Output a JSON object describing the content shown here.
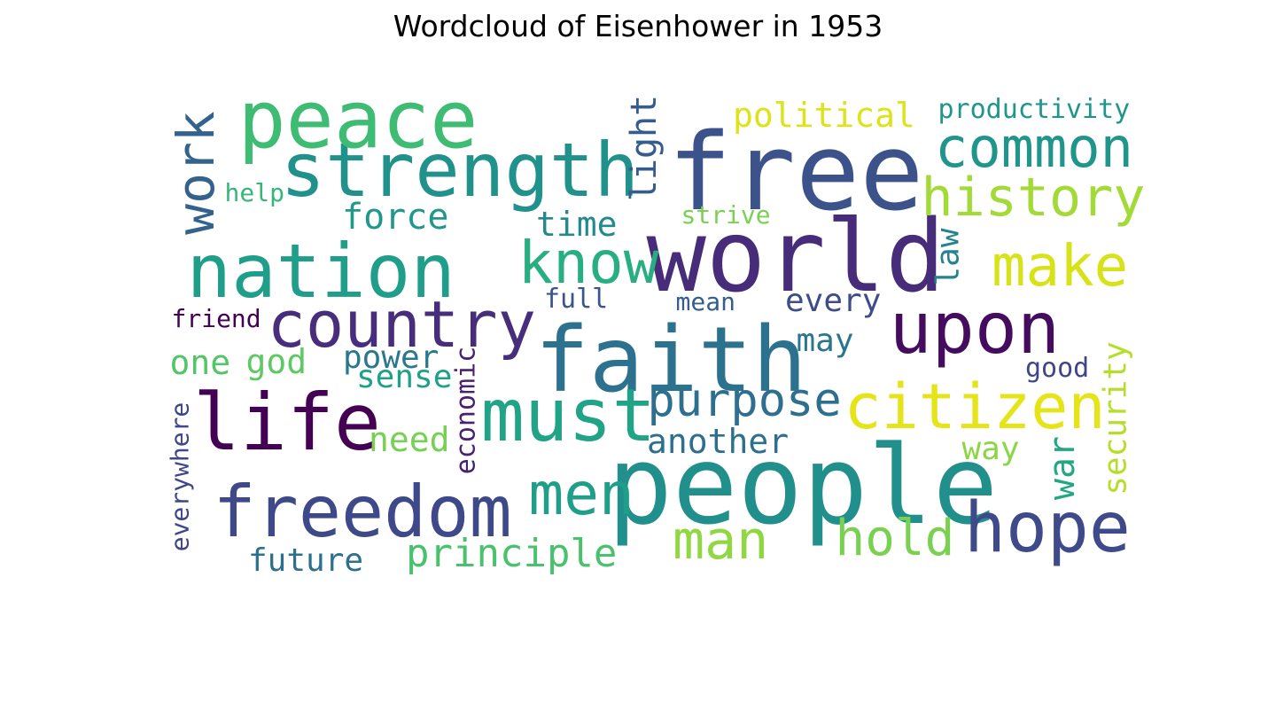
{
  "chart_data": {
    "type": "wordcloud",
    "title": "Wordcloud of Eisenhower in 1953",
    "words": [
      {
        "text": "free",
        "color": "#3b528b"
      },
      {
        "text": "people",
        "color": "#21908d"
      },
      {
        "text": "world",
        "color": "#472c7a"
      },
      {
        "text": "faith",
        "color": "#2c728e"
      },
      {
        "text": "strength",
        "color": "#21918c"
      },
      {
        "text": "peace",
        "color": "#3fbc73"
      },
      {
        "text": "nation",
        "color": "#1f9e89"
      },
      {
        "text": "must",
        "color": "#20a386"
      },
      {
        "text": "life",
        "color": "#440154"
      },
      {
        "text": "freedom",
        "color": "#3e4989"
      },
      {
        "text": "upon",
        "color": "#450b5e"
      },
      {
        "text": "country",
        "color": "#472d7b"
      },
      {
        "text": "citizen",
        "color": "#e5e419"
      },
      {
        "text": "know",
        "color": "#28ae80"
      },
      {
        "text": "hope",
        "color": "#3e4a89"
      },
      {
        "text": "common",
        "color": "#1f958b"
      },
      {
        "text": "history",
        "color": "#a2da37"
      },
      {
        "text": "make",
        "color": "#d8e219"
      },
      {
        "text": "men",
        "color": "#1f9e89"
      },
      {
        "text": "man",
        "color": "#90d743"
      },
      {
        "text": "hold",
        "color": "#7ad151"
      },
      {
        "text": "purpose",
        "color": "#2e6e8e"
      },
      {
        "text": "work",
        "color": "#33638d"
      },
      {
        "text": "principle",
        "color": "#4ac16d"
      },
      {
        "text": "political",
        "color": "#dde318"
      },
      {
        "text": "productivity",
        "color": "#1f968b"
      },
      {
        "text": "light",
        "color": "#365c8d"
      },
      {
        "text": "time",
        "color": "#23898e"
      },
      {
        "text": "force",
        "color": "#1f988b"
      },
      {
        "text": "another",
        "color": "#2d708e"
      },
      {
        "text": "every",
        "color": "#3e4c8a"
      },
      {
        "text": "security",
        "color": "#b5de2b"
      },
      {
        "text": "war",
        "color": "#22a785"
      },
      {
        "text": "future",
        "color": "#2d708e"
      },
      {
        "text": "law",
        "color": "#26828e"
      },
      {
        "text": "god",
        "color": "#5ec962"
      },
      {
        "text": "one",
        "color": "#52c569"
      },
      {
        "text": "power",
        "color": "#2a788e"
      },
      {
        "text": "sense",
        "color": "#1fa188"
      },
      {
        "text": "need",
        "color": "#75d054"
      },
      {
        "text": "economic",
        "color": "#482173"
      },
      {
        "text": "may",
        "color": "#2a768e"
      },
      {
        "text": "way",
        "color": "#8bd646"
      },
      {
        "text": "good",
        "color": "#404588"
      },
      {
        "text": "everywhere",
        "color": "#404688"
      },
      {
        "text": "strive",
        "color": "#7ad151"
      },
      {
        "text": "help",
        "color": "#35b779"
      },
      {
        "text": "friend",
        "color": "#440154"
      },
      {
        "text": "full",
        "color": "#39568c"
      },
      {
        "text": "mean",
        "color": "#365d8d"
      }
    ]
  }
}
